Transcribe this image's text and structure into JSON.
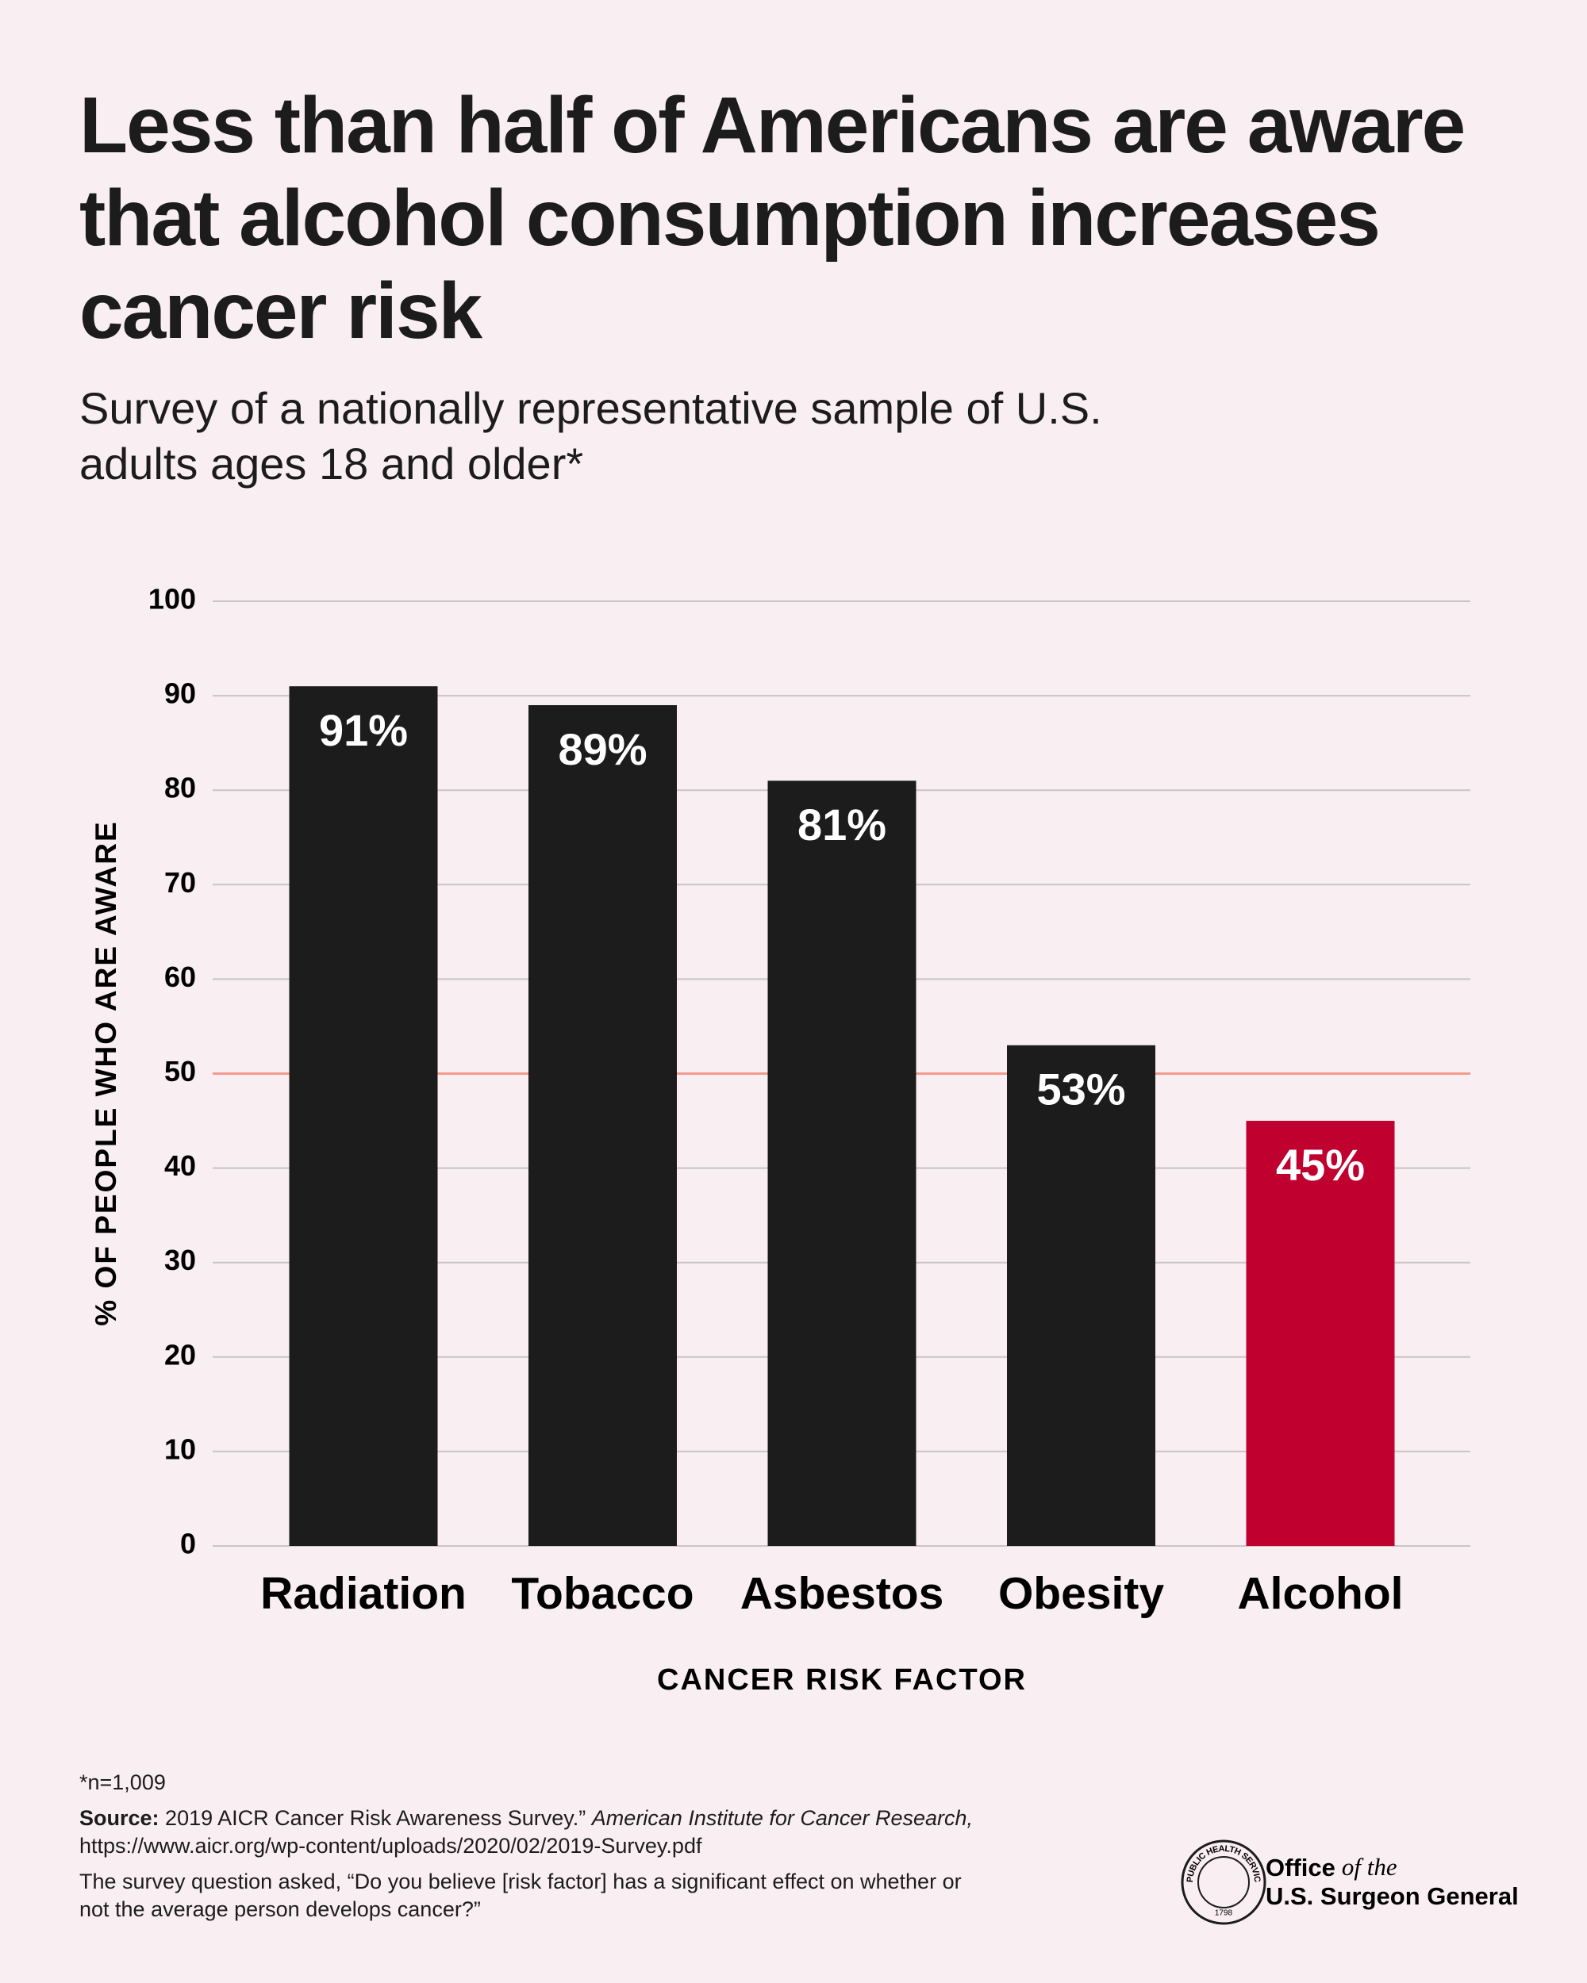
{
  "chart_data": {
    "type": "bar",
    "title": "Less than half of Americans are aware that alcohol consumption increases cancer risk",
    "subtitle": "Survey of a nationally representative sample of U.S. adults ages 18 and older*",
    "x_label": "CANCER RISK FACTOR",
    "y_label": "% OF PEOPLE WHO ARE AWARE",
    "categories": [
      "Radiation",
      "Tobacco",
      "Asbestos",
      "Obesity",
      "Alcohol"
    ],
    "values": [
      91,
      89,
      81,
      53,
      45
    ],
    "value_labels": [
      "91%",
      "89%",
      "81%",
      "53%",
      "45%"
    ],
    "colors": [
      "#1c1c1c",
      "#1c1c1c",
      "#1c1c1c",
      "#1c1c1c",
      "#c0002f"
    ],
    "ylim": [
      0,
      100
    ],
    "yticks": [
      0,
      10,
      20,
      30,
      40,
      50,
      60,
      70,
      80,
      90,
      100
    ],
    "grid": true,
    "reference_line": {
      "value": 50,
      "color": "#f29a8c"
    }
  },
  "footnote": {
    "sample": "*n=1,009",
    "source_label": "Source:",
    "source_text": "2019 AICR Cancer Risk Awareness Survey.”",
    "source_publication": "American Institute for Cancer Research,",
    "source_url": "https://www.aicr.org/wp-content/uploads/2020/02/2019-Survey.pdf",
    "question": "The survey question asked, “Do you believe [risk factor] has a significant effect on whether or not the average person develops cancer?”"
  },
  "logo": {
    "office": "Office",
    "of_the": "of the",
    "name": "U.S. Surgeon General",
    "seal_text": "PUBLIC HEALTH SERVICE",
    "seal_year": "1798"
  }
}
